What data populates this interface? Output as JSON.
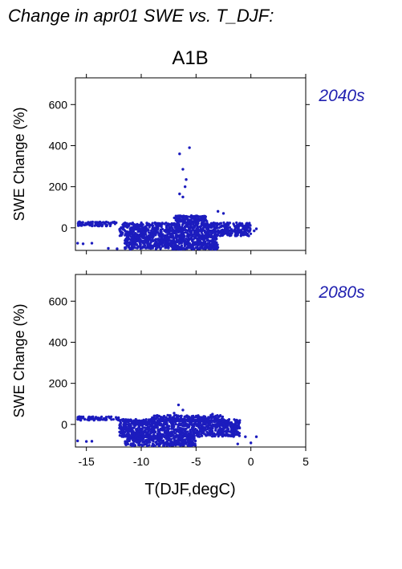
{
  "figure": {
    "title": "Change in apr01 SWE vs. T_DJF:",
    "scenario": "A1B",
    "xlabel": "T(DJF,degC)",
    "point_color": "#1c1cbe",
    "period_label_color": "#2020b0"
  },
  "chart_data": [
    {
      "type": "scatter",
      "period": "2040s",
      "xlabel": "",
      "ylabel": "SWE Change (%)",
      "xlim": [
        -16,
        5
      ],
      "ylim": [
        -110,
        730
      ],
      "xticks": [
        -15,
        -10,
        -5,
        0,
        5
      ],
      "yticks": [
        0,
        200,
        400,
        600
      ],
      "grid": false,
      "x_tick_labels_shown": false,
      "clusters": [
        {
          "x": [
            -12.0,
            0.0
          ],
          "y": [
            -40,
            25
          ]
        },
        {
          "x": [
            -15.8,
            -12.2
          ],
          "y": [
            8,
            30
          ]
        },
        {
          "x": [
            -11.5,
            -3.0
          ],
          "y": [
            -105,
            -40
          ]
        },
        {
          "x": [
            -7.0,
            -4.0
          ],
          "y": [
            25,
            60
          ]
        }
      ],
      "sparse_points": [
        {
          "x": -15.8,
          "y": -75
        },
        {
          "x": -15.3,
          "y": -78
        },
        {
          "x": -14.5,
          "y": -75
        },
        {
          "x": -13.0,
          "y": -100
        },
        {
          "x": -12.2,
          "y": -102
        },
        {
          "x": -1.0,
          "y": -20
        },
        {
          "x": -0.3,
          "y": -30
        },
        {
          "x": 0.3,
          "y": -15
        },
        {
          "x": 0.5,
          "y": -5
        },
        {
          "x": -3.0,
          "y": 80
        },
        {
          "x": -2.5,
          "y": 70
        },
        {
          "x": -6.2,
          "y": 150
        },
        {
          "x": -6.0,
          "y": 200
        },
        {
          "x": -6.5,
          "y": 165
        }
      ],
      "outliers": [
        {
          "x": -6.5,
          "y": 360
        },
        {
          "x": -5.6,
          "y": 390
        },
        {
          "x": -6.2,
          "y": 285
        },
        {
          "x": -5.9,
          "y": 235
        }
      ]
    },
    {
      "type": "scatter",
      "period": "2080s",
      "xlabel": "T(DJF,degC)",
      "ylabel": "SWE Change (%)",
      "xlim": [
        -16,
        5
      ],
      "ylim": [
        -110,
        730
      ],
      "xticks": [
        -15,
        -10,
        -5,
        0,
        5
      ],
      "yticks": [
        0,
        200,
        400,
        600
      ],
      "grid": false,
      "x_tick_labels_shown": true,
      "clusters": [
        {
          "x": [
            -12.0,
            -1.0
          ],
          "y": [
            -60,
            25
          ]
        },
        {
          "x": [
            -15.8,
            -12.0
          ],
          "y": [
            20,
            38
          ]
        },
        {
          "x": [
            -11.5,
            -5.0
          ],
          "y": [
            -105,
            -55
          ]
        },
        {
          "x": [
            -9.0,
            -2.5
          ],
          "y": [
            15,
            45
          ]
        }
      ],
      "sparse_points": [
        {
          "x": -15.8,
          "y": -80
        },
        {
          "x": -15.0,
          "y": -83
        },
        {
          "x": -14.5,
          "y": -82
        },
        {
          "x": -0.5,
          "y": -60
        },
        {
          "x": 0.0,
          "y": -90
        },
        {
          "x": 0.5,
          "y": -60
        },
        {
          "x": -1.2,
          "y": -95
        },
        {
          "x": -3.5,
          "y": 50
        },
        {
          "x": -7.0,
          "y": 55
        }
      ],
      "outliers": [
        {
          "x": -6.6,
          "y": 95
        },
        {
          "x": -6.2,
          "y": 70
        }
      ]
    }
  ]
}
